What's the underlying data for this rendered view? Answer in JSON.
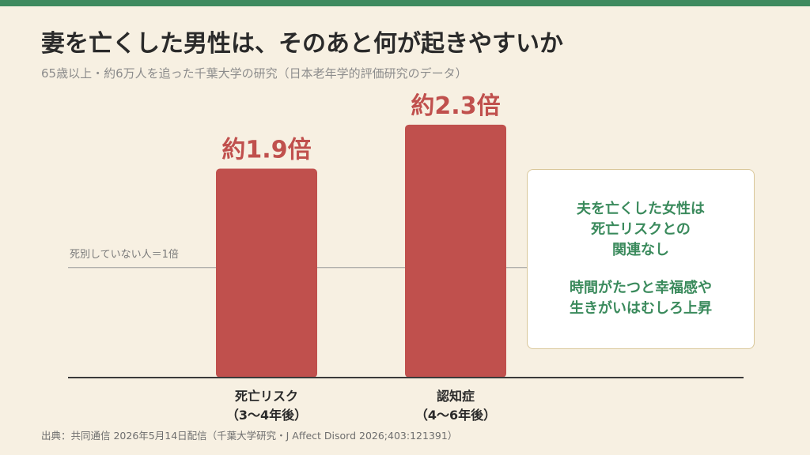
{
  "header": {
    "title": "妻を亡くした男性は、そのあと何が起きやすいか",
    "subtitle": "65歳以上・約6万人を追った千葉大学の研究（日本老年学的評価研究のデータ）"
  },
  "chart_data": {
    "type": "bar",
    "categories": [
      [
        "死亡リスク",
        "（3〜4年後）"
      ],
      [
        "認知症",
        "（4〜6年後）"
      ]
    ],
    "values": [
      1.9,
      2.3
    ],
    "value_labels": [
      "約1.9倍",
      "約2.3倍"
    ],
    "baseline": {
      "value": 1.0,
      "label": "死別していない人＝1倍"
    },
    "ylim": [
      0,
      2.5
    ],
    "grid": false,
    "bar_color": "#c0504d"
  },
  "note": {
    "lines_a": [
      "夫を亡くした女性は",
      "死亡リスクとの",
      "関連なし"
    ],
    "lines_b": [
      "時間がたつと幸福感や",
      "生きがいはむしろ上昇"
    ]
  },
  "source": "出典：共同通信 2026年5月14日配信（千葉大学研究・J Affect Disord 2026;403:121391）"
}
